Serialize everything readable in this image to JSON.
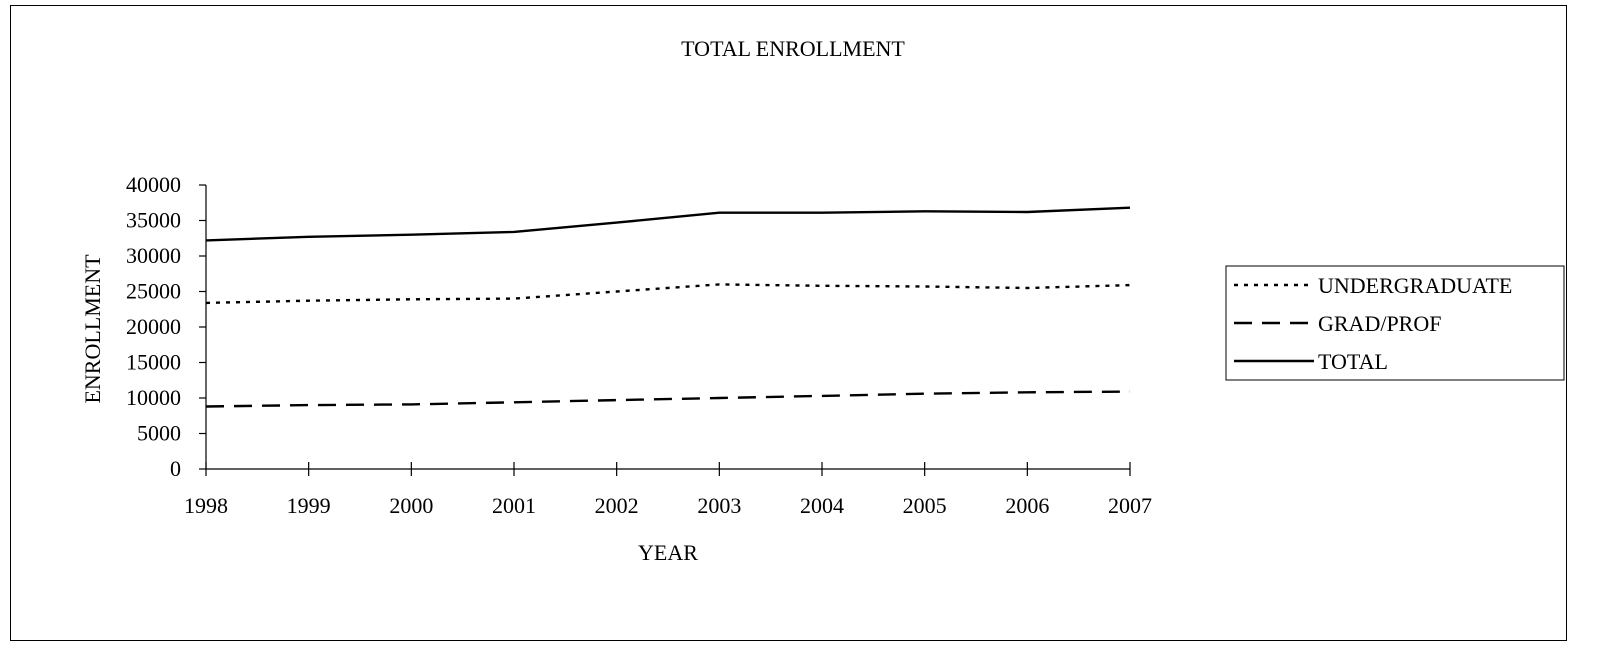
{
  "chart_data": {
    "type": "line",
    "title": "TOTAL ENROLLMENT",
    "xlabel": "YEAR",
    "ylabel": "ENROLLMENT",
    "categories": [
      "1998",
      "1999",
      "2000",
      "2001",
      "2002",
      "2003",
      "2004",
      "2005",
      "2006",
      "2007"
    ],
    "ylim": [
      0,
      40000
    ],
    "yticks": [
      "0",
      "5000",
      "10000",
      "15000",
      "20000",
      "25000",
      "30000",
      "35000",
      "40000"
    ],
    "grid": false,
    "legend_position": "right",
    "series": [
      {
        "name": "UNDERGRADUATE",
        "style": "dotted",
        "color": "#000000",
        "values": [
          23400,
          23700,
          23900,
          24000,
          25000,
          26000,
          25800,
          25700,
          25500,
          25900
        ]
      },
      {
        "name": "GRAD/PROF",
        "style": "dashed",
        "color": "#000000",
        "values": [
          8800,
          9000,
          9100,
          9400,
          9700,
          10000,
          10300,
          10600,
          10800,
          10900
        ]
      },
      {
        "name": "TOTAL",
        "style": "solid",
        "color": "#000000",
        "values": [
          32200,
          32700,
          33000,
          33400,
          34700,
          36100,
          36100,
          36300,
          36200,
          36800
        ]
      }
    ]
  }
}
